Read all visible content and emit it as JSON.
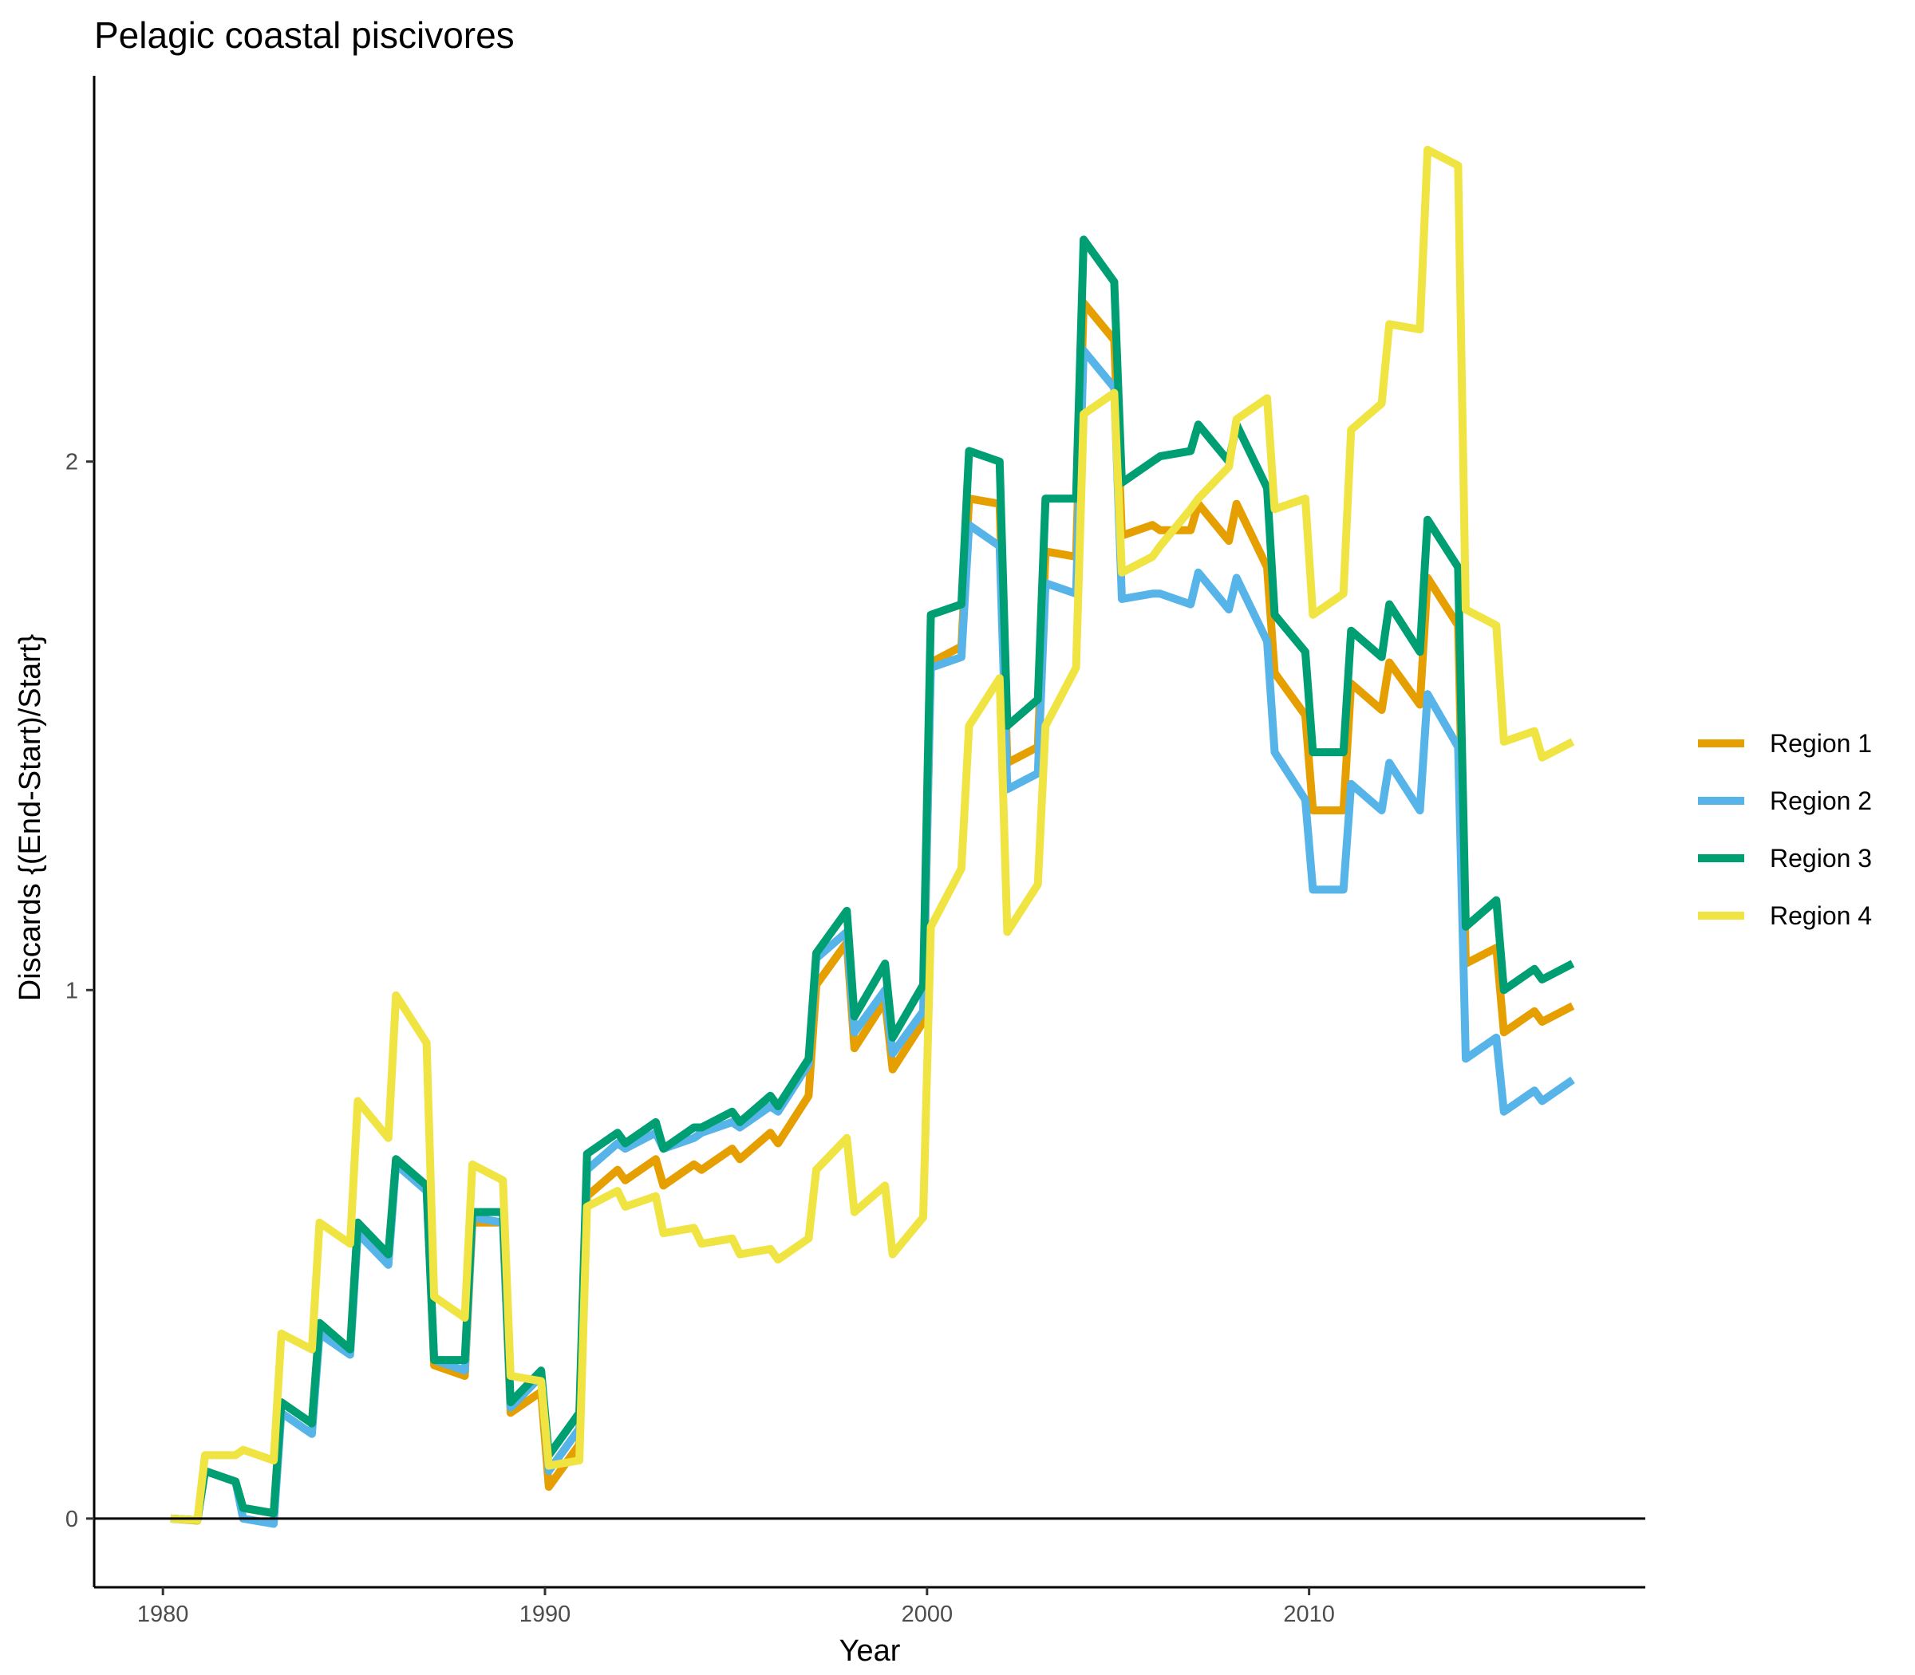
{
  "chart_data": {
    "type": "line",
    "title": "Pelagic coastal piscivores",
    "xlabel": "Year",
    "ylabel": "Discards {(End-Start)/Start}",
    "xlim": [
      1978.2,
      2018.8
    ],
    "ylim": [
      -0.13,
      2.73
    ],
    "x_ticks": [
      1980,
      1990,
      2000,
      2010
    ],
    "x_tick_labels": [
      "1980",
      "1990",
      "2000",
      "2010"
    ],
    "y_ticks": [
      0,
      1,
      2
    ],
    "y_tick_labels": [
      "0",
      "1",
      "2"
    ],
    "zero_line": true,
    "grid": false,
    "legend_position": "right",
    "series": [
      {
        "name": "Region 1",
        "color": "#E69F00",
        "points": [
          [
            1980.2,
            0.0
          ],
          [
            1980.9,
            -0.004
          ],
          [
            1981.1,
            0.09
          ],
          [
            1981.9,
            0.07
          ],
          [
            1982.1,
            0.02
          ],
          [
            1982.9,
            0.01
          ],
          [
            1983.1,
            0.22
          ],
          [
            1983.9,
            0.18
          ],
          [
            1984.1,
            0.37
          ],
          [
            1984.9,
            0.32
          ],
          [
            1985.1,
            0.56
          ],
          [
            1985.9,
            0.49
          ],
          [
            1986.1,
            0.68
          ],
          [
            1986.9,
            0.63
          ],
          [
            1987.1,
            0.29
          ],
          [
            1987.9,
            0.27
          ],
          [
            1988.1,
            0.56
          ],
          [
            1988.9,
            0.56
          ],
          [
            1989.1,
            0.2
          ],
          [
            1989.9,
            0.24
          ],
          [
            1990.1,
            0.06
          ],
          [
            1990.9,
            0.14
          ],
          [
            1991.1,
            0.61
          ],
          [
            1991.9,
            0.66
          ],
          [
            1992.1,
            0.64
          ],
          [
            1992.9,
            0.68
          ],
          [
            1993.1,
            0.63
          ],
          [
            1993.9,
            0.67
          ],
          [
            1994.1,
            0.66
          ],
          [
            1994.9,
            0.7
          ],
          [
            1995.1,
            0.68
          ],
          [
            1995.9,
            0.73
          ],
          [
            1996.1,
            0.71
          ],
          [
            1996.9,
            0.8
          ],
          [
            1997.1,
            1.01
          ],
          [
            1997.9,
            1.09
          ],
          [
            1998.1,
            0.89
          ],
          [
            1998.9,
            0.98
          ],
          [
            1999.1,
            0.85
          ],
          [
            1999.9,
            0.94
          ],
          [
            2000.1,
            1.62
          ],
          [
            2000.9,
            1.65
          ],
          [
            2001.1,
            1.93
          ],
          [
            2001.9,
            1.92
          ],
          [
            2002.1,
            1.43
          ],
          [
            2002.9,
            1.46
          ],
          [
            2003.1,
            1.83
          ],
          [
            2003.9,
            1.82
          ],
          [
            2004.1,
            2.3
          ],
          [
            2004.9,
            2.23
          ],
          [
            2005.1,
            1.86
          ],
          [
            2005.9,
            1.88
          ],
          [
            2006.1,
            1.87
          ],
          [
            2006.9,
            1.87
          ],
          [
            2007.1,
            1.92
          ],
          [
            2007.9,
            1.85
          ],
          [
            2008.1,
            1.92
          ],
          [
            2008.9,
            1.8
          ],
          [
            2009.1,
            1.6
          ],
          [
            2009.9,
            1.52
          ],
          [
            2010.1,
            1.34
          ],
          [
            2010.9,
            1.34
          ],
          [
            2011.1,
            1.58
          ],
          [
            2011.9,
            1.53
          ],
          [
            2012.1,
            1.62
          ],
          [
            2012.9,
            1.54
          ],
          [
            2013.1,
            1.78
          ],
          [
            2013.9,
            1.69
          ],
          [
            2014.1,
            1.05
          ],
          [
            2014.9,
            1.08
          ],
          [
            2015.1,
            0.92
          ],
          [
            2015.9,
            0.96
          ],
          [
            2016.1,
            0.94
          ],
          [
            2016.9,
            0.97
          ]
        ]
      },
      {
        "name": "Region 2",
        "color": "#56B4E9",
        "points": [
          [
            1980.2,
            0.0
          ],
          [
            1980.9,
            -0.003
          ],
          [
            1981.1,
            0.09
          ],
          [
            1981.9,
            0.07
          ],
          [
            1982.1,
            0.0
          ],
          [
            1982.9,
            -0.01
          ],
          [
            1983.1,
            0.2
          ],
          [
            1983.9,
            0.16
          ],
          [
            1984.1,
            0.35
          ],
          [
            1984.9,
            0.31
          ],
          [
            1985.1,
            0.54
          ],
          [
            1985.9,
            0.48
          ],
          [
            1986.1,
            0.67
          ],
          [
            1986.9,
            0.62
          ],
          [
            1987.1,
            0.3
          ],
          [
            1987.9,
            0.28
          ],
          [
            1988.1,
            0.57
          ],
          [
            1988.9,
            0.56
          ],
          [
            1989.1,
            0.21
          ],
          [
            1989.9,
            0.27
          ],
          [
            1990.1,
            0.09
          ],
          [
            1990.9,
            0.17
          ],
          [
            1991.1,
            0.66
          ],
          [
            1991.9,
            0.71
          ],
          [
            1992.1,
            0.7
          ],
          [
            1992.9,
            0.73
          ],
          [
            1993.1,
            0.7
          ],
          [
            1993.9,
            0.72
          ],
          [
            1994.1,
            0.73
          ],
          [
            1994.9,
            0.75
          ],
          [
            1995.1,
            0.74
          ],
          [
            1995.9,
            0.78
          ],
          [
            1996.1,
            0.77
          ],
          [
            1996.9,
            0.86
          ],
          [
            1997.1,
            1.06
          ],
          [
            1997.9,
            1.11
          ],
          [
            1998.1,
            0.92
          ],
          [
            1998.9,
            1.0
          ],
          [
            1999.1,
            0.88
          ],
          [
            1999.9,
            0.96
          ],
          [
            2000.1,
            1.61
          ],
          [
            2000.9,
            1.63
          ],
          [
            2001.1,
            1.88
          ],
          [
            2001.9,
            1.84
          ],
          [
            2002.1,
            1.38
          ],
          [
            2002.9,
            1.41
          ],
          [
            2003.1,
            1.77
          ],
          [
            2003.9,
            1.75
          ],
          [
            2004.1,
            2.21
          ],
          [
            2004.9,
            2.14
          ],
          [
            2005.1,
            1.74
          ],
          [
            2005.9,
            1.75
          ],
          [
            2006.1,
            1.75
          ],
          [
            2006.9,
            1.73
          ],
          [
            2007.1,
            1.79
          ],
          [
            2007.9,
            1.72
          ],
          [
            2008.1,
            1.78
          ],
          [
            2008.9,
            1.66
          ],
          [
            2009.1,
            1.45
          ],
          [
            2009.9,
            1.36
          ],
          [
            2010.1,
            1.19
          ],
          [
            2010.9,
            1.19
          ],
          [
            2011.1,
            1.39
          ],
          [
            2011.9,
            1.34
          ],
          [
            2012.1,
            1.43
          ],
          [
            2012.9,
            1.34
          ],
          [
            2013.1,
            1.56
          ],
          [
            2013.9,
            1.46
          ],
          [
            2014.1,
            0.87
          ],
          [
            2014.9,
            0.91
          ],
          [
            2015.1,
            0.77
          ],
          [
            2015.9,
            0.81
          ],
          [
            2016.1,
            0.79
          ],
          [
            2016.9,
            0.83
          ]
        ]
      },
      {
        "name": "Region 3",
        "color": "#009E73",
        "points": [
          [
            1980.2,
            0.0
          ],
          [
            1980.9,
            -0.003
          ],
          [
            1981.1,
            0.09
          ],
          [
            1981.9,
            0.07
          ],
          [
            1982.1,
            0.02
          ],
          [
            1982.9,
            0.01
          ],
          [
            1983.1,
            0.22
          ],
          [
            1983.9,
            0.18
          ],
          [
            1984.1,
            0.37
          ],
          [
            1984.9,
            0.32
          ],
          [
            1985.1,
            0.56
          ],
          [
            1985.9,
            0.5
          ],
          [
            1986.1,
            0.68
          ],
          [
            1986.9,
            0.63
          ],
          [
            1987.1,
            0.3
          ],
          [
            1987.9,
            0.3
          ],
          [
            1988.1,
            0.58
          ],
          [
            1988.9,
            0.58
          ],
          [
            1989.1,
            0.22
          ],
          [
            1989.9,
            0.28
          ],
          [
            1990.1,
            0.12
          ],
          [
            1990.9,
            0.2
          ],
          [
            1991.1,
            0.69
          ],
          [
            1991.9,
            0.73
          ],
          [
            1992.1,
            0.71
          ],
          [
            1992.9,
            0.75
          ],
          [
            1993.1,
            0.7
          ],
          [
            1993.9,
            0.74
          ],
          [
            1994.1,
            0.74
          ],
          [
            1994.9,
            0.77
          ],
          [
            1995.1,
            0.75
          ],
          [
            1995.9,
            0.8
          ],
          [
            1996.1,
            0.78
          ],
          [
            1996.9,
            0.87
          ],
          [
            1997.1,
            1.07
          ],
          [
            1997.9,
            1.15
          ],
          [
            1998.1,
            0.95
          ],
          [
            1998.9,
            1.05
          ],
          [
            1999.1,
            0.91
          ],
          [
            1999.9,
            1.01
          ],
          [
            2000.1,
            1.71
          ],
          [
            2000.9,
            1.73
          ],
          [
            2001.1,
            2.02
          ],
          [
            2001.9,
            2.0
          ],
          [
            2002.1,
            1.5
          ],
          [
            2002.9,
            1.55
          ],
          [
            2003.1,
            1.93
          ],
          [
            2003.9,
            1.93
          ],
          [
            2004.1,
            2.42
          ],
          [
            2004.9,
            2.34
          ],
          [
            2005.1,
            1.96
          ],
          [
            2005.9,
            2.0
          ],
          [
            2006.1,
            2.01
          ],
          [
            2006.9,
            2.02
          ],
          [
            2007.1,
            2.07
          ],
          [
            2007.9,
            2.0
          ],
          [
            2008.1,
            2.07
          ],
          [
            2008.9,
            1.95
          ],
          [
            2009.1,
            1.71
          ],
          [
            2009.9,
            1.64
          ],
          [
            2010.1,
            1.45
          ],
          [
            2010.9,
            1.45
          ],
          [
            2011.1,
            1.68
          ],
          [
            2011.9,
            1.63
          ],
          [
            2012.1,
            1.73
          ],
          [
            2012.9,
            1.64
          ],
          [
            2013.1,
            1.89
          ],
          [
            2013.9,
            1.8
          ],
          [
            2014.1,
            1.12
          ],
          [
            2014.9,
            1.17
          ],
          [
            2015.1,
            1.0
          ],
          [
            2015.9,
            1.04
          ],
          [
            2016.1,
            1.02
          ],
          [
            2016.9,
            1.05
          ]
        ]
      },
      {
        "name": "Region 4",
        "color": "#F0E442",
        "points": [
          [
            1980.2,
            0.0
          ],
          [
            1980.9,
            -0.003
          ],
          [
            1981.1,
            0.12
          ],
          [
            1981.9,
            0.12
          ],
          [
            1982.1,
            0.13
          ],
          [
            1982.9,
            0.11
          ],
          [
            1983.1,
            0.35
          ],
          [
            1983.9,
            0.32
          ],
          [
            1984.1,
            0.56
          ],
          [
            1984.9,
            0.52
          ],
          [
            1985.1,
            0.79
          ],
          [
            1985.9,
            0.72
          ],
          [
            1986.1,
            0.99
          ],
          [
            1986.9,
            0.9
          ],
          [
            1987.1,
            0.42
          ],
          [
            1987.9,
            0.38
          ],
          [
            1988.1,
            0.67
          ],
          [
            1988.9,
            0.64
          ],
          [
            1989.1,
            0.27
          ],
          [
            1989.9,
            0.26
          ],
          [
            1990.1,
            0.1
          ],
          [
            1990.9,
            0.11
          ],
          [
            1991.1,
            0.59
          ],
          [
            1991.9,
            0.62
          ],
          [
            1992.1,
            0.59
          ],
          [
            1992.9,
            0.61
          ],
          [
            1993.1,
            0.54
          ],
          [
            1993.9,
            0.55
          ],
          [
            1994.1,
            0.52
          ],
          [
            1994.9,
            0.53
          ],
          [
            1995.1,
            0.5
          ],
          [
            1995.9,
            0.51
          ],
          [
            1996.1,
            0.49
          ],
          [
            1996.9,
            0.53
          ],
          [
            1997.1,
            0.66
          ],
          [
            1997.9,
            0.72
          ],
          [
            1998.1,
            0.58
          ],
          [
            1998.9,
            0.63
          ],
          [
            1999.1,
            0.5
          ],
          [
            1999.9,
            0.57
          ],
          [
            2000.1,
            1.12
          ],
          [
            2000.9,
            1.23
          ],
          [
            2001.1,
            1.5
          ],
          [
            2001.9,
            1.59
          ],
          [
            2002.1,
            1.11
          ],
          [
            2002.9,
            1.2
          ],
          [
            2003.1,
            1.5
          ],
          [
            2003.9,
            1.61
          ],
          [
            2004.1,
            2.09
          ],
          [
            2004.9,
            2.13
          ],
          [
            2005.1,
            1.79
          ],
          [
            2005.9,
            1.82
          ],
          [
            2006.1,
            1.84
          ],
          [
            2006.9,
            1.91
          ],
          [
            2007.1,
            1.93
          ],
          [
            2007.9,
            1.99
          ],
          [
            2008.1,
            2.08
          ],
          [
            2008.9,
            2.12
          ],
          [
            2009.1,
            1.91
          ],
          [
            2009.9,
            1.93
          ],
          [
            2010.1,
            1.71
          ],
          [
            2010.9,
            1.75
          ],
          [
            2011.1,
            2.06
          ],
          [
            2011.9,
            2.11
          ],
          [
            2012.1,
            2.26
          ],
          [
            2012.9,
            2.25
          ],
          [
            2013.1,
            2.59
          ],
          [
            2013.9,
            2.56
          ],
          [
            2014.1,
            1.72
          ],
          [
            2014.9,
            1.69
          ],
          [
            2015.1,
            1.47
          ],
          [
            2015.9,
            1.49
          ],
          [
            2016.1,
            1.44
          ],
          [
            2016.9,
            1.47
          ]
        ]
      }
    ]
  }
}
